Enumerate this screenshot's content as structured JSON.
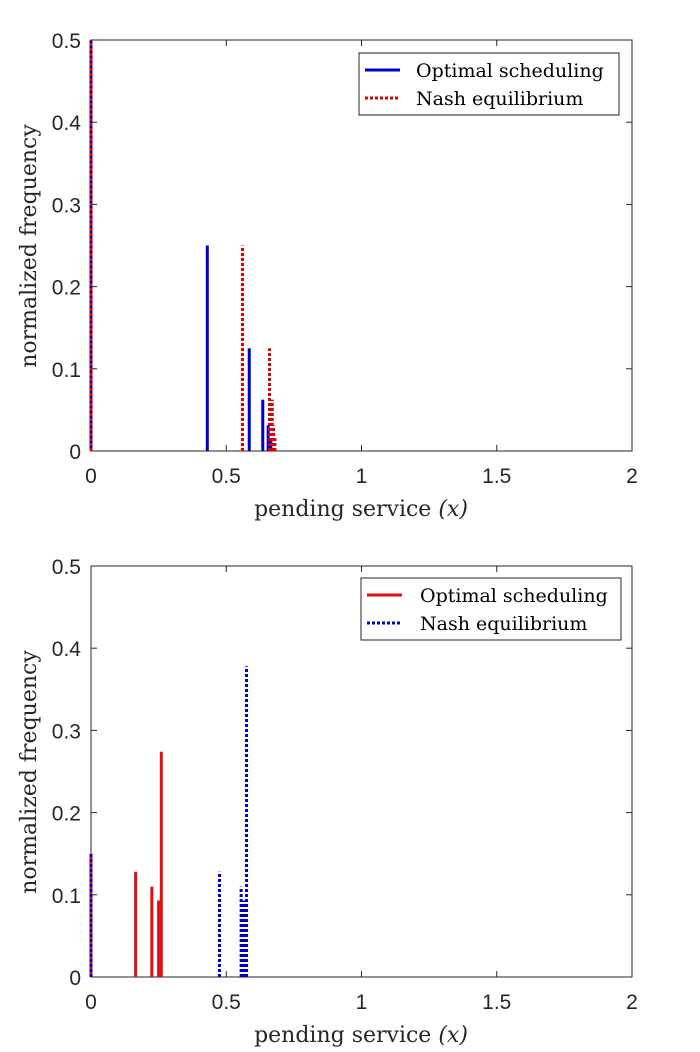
{
  "chart_data": [
    {
      "type": "bar",
      "name": "top",
      "xlabel": "pending service",
      "xlabel_var": "(x)",
      "ylabel": "normalized frequency",
      "xlim": [
        0,
        2
      ],
      "ylim": [
        0,
        0.5
      ],
      "xticks": [
        0,
        0.5,
        1,
        1.5,
        2
      ],
      "xtick_labels": [
        "0",
        "0.5",
        "1",
        "1.5",
        "2"
      ],
      "yticks": [
        0,
        0.1,
        0.2,
        0.3,
        0.4,
        0.5
      ],
      "ytick_labels": [
        "0",
        "0.1",
        "0.2",
        "0.3",
        "0.4",
        "0.5"
      ],
      "legend_position": "top-right",
      "series": [
        {
          "name": "Optimal scheduling",
          "color": "#0000cc",
          "style": "solid",
          "x": [
            0.0,
            0.43,
            0.585,
            0.635,
            0.655,
            0.665
          ],
          "values": [
            0.5,
            0.25,
            0.125,
            0.0625,
            0.03125,
            0.015625
          ]
        },
        {
          "name": "Nash equilibrium",
          "color": "#dd0000",
          "style": "dotted",
          "x": [
            0.0,
            0.56,
            0.66,
            0.67,
            0.675,
            0.68
          ],
          "values": [
            0.5,
            0.25,
            0.125,
            0.0625,
            0.03125,
            0.015625
          ]
        }
      ]
    },
    {
      "type": "bar",
      "name": "bottom",
      "xlabel": "pending service",
      "xlabel_var": "(x)",
      "ylabel": "normalized frequency",
      "xlim": [
        0,
        2
      ],
      "ylim": [
        0,
        0.5
      ],
      "xticks": [
        0,
        0.5,
        1,
        1.5,
        2
      ],
      "xtick_labels": [
        "0",
        "0.5",
        "1",
        "1.5",
        "2"
      ],
      "yticks": [
        0,
        0.1,
        0.2,
        0.3,
        0.4,
        0.5
      ],
      "ytick_labels": [
        "0",
        "0.1",
        "0.2",
        "0.3",
        "0.4",
        "0.5"
      ],
      "legend_position": "top-right",
      "series": [
        {
          "name": "Optimal scheduling",
          "color": "#dd1111",
          "style": "solid",
          "x": [
            0.0,
            0.165,
            0.225,
            0.25,
            0.26
          ],
          "values": [
            0.15,
            0.128,
            0.11,
            0.093,
            0.274
          ]
        },
        {
          "name": "Nash equilibrium",
          "color": "#0000cc",
          "style": "dotted",
          "x": [
            0.0,
            0.475,
            0.555,
            0.565,
            0.575
          ],
          "values": [
            0.15,
            0.128,
            0.11,
            0.093,
            0.378
          ]
        }
      ]
    }
  ]
}
